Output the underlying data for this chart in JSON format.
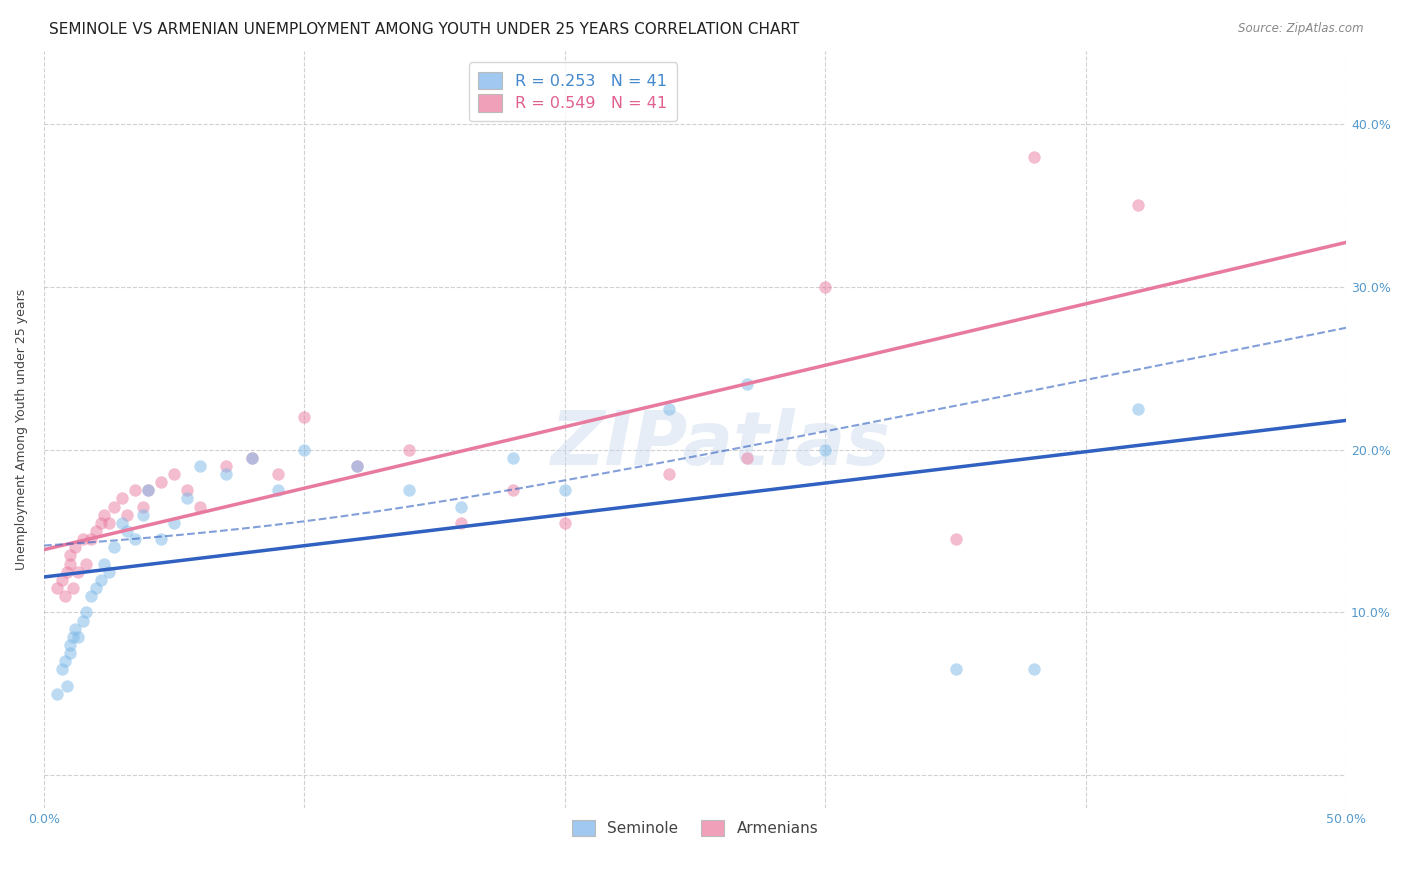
{
  "title": "SEMINOLE VS ARMENIAN UNEMPLOYMENT AMONG YOUTH UNDER 25 YEARS CORRELATION CHART",
  "source": "Source: ZipAtlas.com",
  "ylabel": "Unemployment Among Youth under 25 years",
  "xlim": [
    0.0,
    0.5
  ],
  "ylim": [
    -0.02,
    0.445
  ],
  "x_ticks": [
    0.0,
    0.1,
    0.2,
    0.3,
    0.4,
    0.5
  ],
  "y_ticks": [
    0.0,
    0.1,
    0.2,
    0.3,
    0.4
  ],
  "x_tick_labels": [
    "0.0%",
    "",
    "",
    "",
    "",
    "50.0%"
  ],
  "y_tick_labels_right": [
    "",
    "10.0%",
    "20.0%",
    "30.0%",
    "40.0%"
  ],
  "legend_r1": "R = 0.253   N = 41",
  "legend_r2": "R = 0.549   N = 41",
  "bottom_legend": [
    "Seminole",
    "Armenians"
  ],
  "watermark": "ZIPatlas",
  "shared_x": [
    0.005,
    0.007,
    0.008,
    0.009,
    0.01,
    0.01,
    0.011,
    0.012,
    0.013,
    0.015,
    0.016,
    0.018,
    0.02,
    0.022,
    0.023,
    0.025,
    0.027,
    0.03,
    0.032,
    0.035,
    0.038,
    0.04,
    0.045,
    0.05,
    0.055,
    0.06,
    0.07,
    0.08,
    0.09,
    0.1,
    0.12,
    0.14,
    0.16,
    0.18,
    0.2,
    0.24,
    0.27,
    0.3,
    0.35,
    0.38,
    0.42
  ],
  "seminole_y": [
    0.05,
    0.065,
    0.07,
    0.055,
    0.08,
    0.075,
    0.085,
    0.09,
    0.085,
    0.095,
    0.1,
    0.11,
    0.115,
    0.12,
    0.13,
    0.125,
    0.14,
    0.155,
    0.15,
    0.145,
    0.16,
    0.175,
    0.145,
    0.155,
    0.17,
    0.19,
    0.185,
    0.195,
    0.175,
    0.2,
    0.19,
    0.175,
    0.165,
    0.195,
    0.175,
    0.225,
    0.24,
    0.2,
    0.065,
    0.065,
    0.225
  ],
  "armenian_y": [
    0.115,
    0.12,
    0.11,
    0.125,
    0.13,
    0.135,
    0.115,
    0.14,
    0.125,
    0.145,
    0.13,
    0.145,
    0.15,
    0.155,
    0.16,
    0.155,
    0.165,
    0.17,
    0.16,
    0.175,
    0.165,
    0.175,
    0.18,
    0.185,
    0.175,
    0.165,
    0.19,
    0.195,
    0.185,
    0.22,
    0.19,
    0.2,
    0.155,
    0.175,
    0.155,
    0.185,
    0.195,
    0.3,
    0.145,
    0.38,
    0.35
  ],
  "seminole_color": "#7ab8e8",
  "armenian_color": "#e87aa0",
  "seminole_line_color": "#3060c0",
  "armenian_line_color": "#e87aa0",
  "seminole_legend_color": "#a0c8f0",
  "armenian_legend_color": "#f0a0b8",
  "bg_color": "#ffffff",
  "grid_color": "#cccccc",
  "title_fontsize": 11,
  "axis_fontsize": 9,
  "tick_fontsize": 9,
  "marker_size": 80,
  "marker_alpha": 0.5
}
